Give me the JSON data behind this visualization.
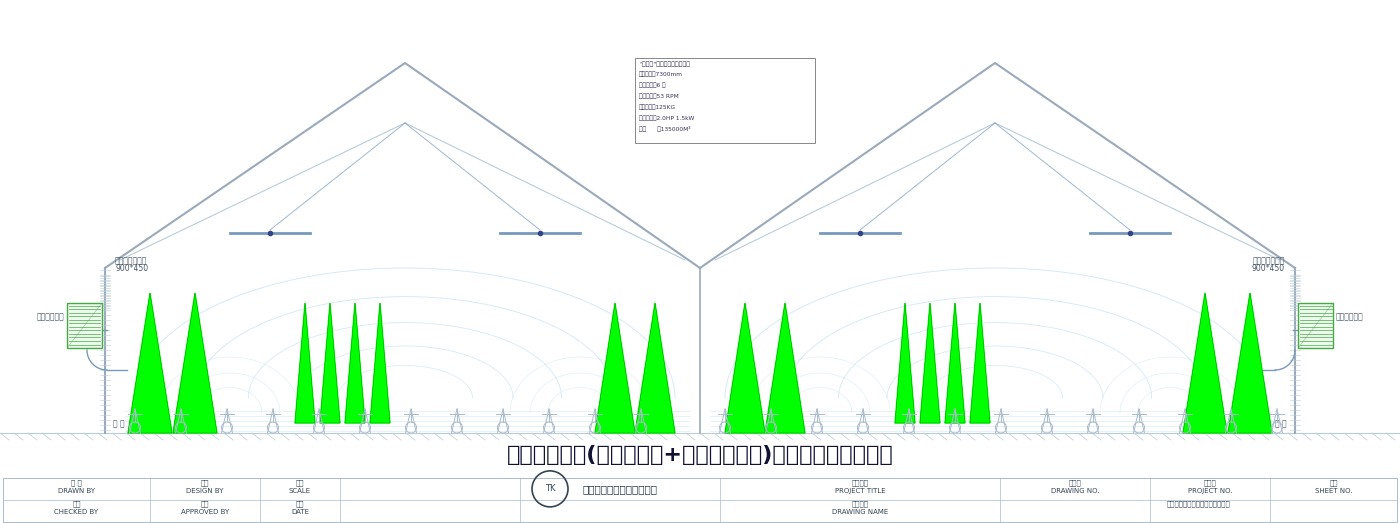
{
  "bg_color": "#ffffff",
  "line_color": "#b8cdd8",
  "dark_line": "#9aaabb",
  "roof_color": "#9aaabb",
  "fan_color": "#00ff00",
  "blue_line": "#7799bb",
  "light_blue": "#b8d8ee",
  "airflow_blue": "#c5e0f0",
  "title": "车间扇机组合(工业大风扇+蒸发式冷风机)通风降温立面示意图",
  "title_fontsize": 16,
  "spec_title": "\"瑞彩风\"工业大风扇规格说明",
  "spec_lines": [
    "风扇直径：7300mm",
    "叶片数量：6 片",
    "风扇转速：53 RPM",
    "风扇重量：125KG",
    "风扇功率：2.0HP 1.5kW",
    "风量      ：135000M³"
  ],
  "left_vent_label1": "自动摆摆送风口",
  "left_vent_label2": "900*450",
  "left_cooler_label": "蒸发式冷风机",
  "right_vent_label1": "自动摆摆送风口",
  "right_vent_label2": "900*450",
  "right_cooler_label": "蒸发式冷风机",
  "window_label": "窗 户",
  "footer_title": "车间扇机组合通风降温立面示意图",
  "company": "苏州昆腾节能科技有限公司",
  "drawn_by": "绘 图\nDRAWN BY",
  "design_by": "设计\nDESIGN BY",
  "scale": "比例\nSCALE",
  "checked_by": "核查\nCHECKED BY",
  "approved_by": "核准\nAPPROVED BY",
  "date_label": "日期\nDATE",
  "proj_title_label": "工程名称\nPROJECT TITLE",
  "drawing_name_label": "图纸名称\nDRAWING NAME",
  "drawing_no_label": "图纸号\nDRAWING NO.",
  "project_no_label": "业务号\nPROJECT NO.",
  "sheet_no_label": "编号\nSHEET NO."
}
